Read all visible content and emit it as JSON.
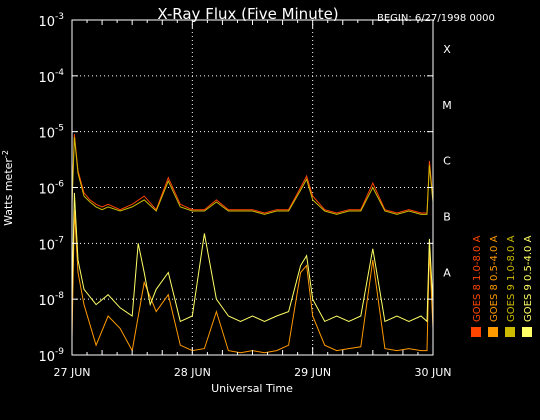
{
  "chart_data": {
    "type": "line",
    "title": "X-Ray Flux (Five Minute)",
    "begin_label": "BEGIN: 6/27/1998 0000",
    "xlabel": "Universal Time",
    "ylabel": "Watts meter",
    "ylabel_exp": "-2",
    "yscale": "log",
    "ylim": [
      1e-09,
      0.001
    ],
    "xlim": [
      0,
      3
    ],
    "grid": true,
    "y_ticks": [
      {
        "value": 1e-09,
        "base": "10",
        "exp": "-9"
      },
      {
        "value": 1e-08,
        "base": "10",
        "exp": "-8"
      },
      {
        "value": 1e-07,
        "base": "10",
        "exp": "-7"
      },
      {
        "value": 1e-06,
        "base": "10",
        "exp": "-6"
      },
      {
        "value": 1e-05,
        "base": "10",
        "exp": "-5"
      },
      {
        "value": 0.0001,
        "base": "10",
        "exp": "-4"
      },
      {
        "value": 0.001,
        "base": "10",
        "exp": "-3"
      }
    ],
    "x_ticks": [
      {
        "value": 0,
        "label": "27 JUN"
      },
      {
        "value": 1,
        "label": "28 JUN"
      },
      {
        "value": 2,
        "label": "29 JUN"
      },
      {
        "value": 3,
        "label": "30 JUN"
      }
    ],
    "flare_classes": [
      {
        "label": "A",
        "value": 1e-08
      },
      {
        "label": "B",
        "value": 1e-07
      },
      {
        "label": "C",
        "value": 1e-06
      },
      {
        "label": "M",
        "value": 1e-05
      },
      {
        "label": "X",
        "value": 0.0001
      }
    ],
    "series": [
      {
        "name": "GOES 8 1.0-8.0 A",
        "color": "#ff4400",
        "x": [
          0.0,
          0.02,
          0.05,
          0.1,
          0.15,
          0.2,
          0.25,
          0.3,
          0.4,
          0.5,
          0.6,
          0.7,
          0.8,
          0.9,
          1.0,
          1.1,
          1.2,
          1.3,
          1.4,
          1.5,
          1.6,
          1.7,
          1.8,
          1.9,
          1.95,
          2.0,
          2.1,
          2.2,
          2.3,
          2.4,
          2.5,
          2.6,
          2.7,
          2.8,
          2.9,
          2.95,
          2.97,
          3.0
        ],
        "values": [
          6e-07,
          9e-06,
          2e-06,
          8e-07,
          6e-07,
          5e-07,
          4.5e-07,
          5e-07,
          4e-07,
          5e-07,
          7e-07,
          4e-07,
          1.5e-06,
          5e-07,
          4e-07,
          4e-07,
          6e-07,
          4e-07,
          4e-07,
          4e-07,
          3.5e-07,
          4e-07,
          4e-07,
          1e-06,
          1.6e-06,
          7e-07,
          4e-07,
          3.5e-07,
          4e-07,
          4e-07,
          1.2e-06,
          4e-07,
          3.5e-07,
          4e-07,
          3.5e-07,
          3.5e-07,
          3e-06,
          6e-07
        ]
      },
      {
        "name": "GOES 8 0.5-4.0 A",
        "color": "#ff9900",
        "x": [
          0.0,
          0.02,
          0.05,
          0.1,
          0.2,
          0.3,
          0.4,
          0.5,
          0.6,
          0.7,
          0.8,
          0.9,
          1.0,
          1.1,
          1.2,
          1.3,
          1.4,
          1.5,
          1.6,
          1.7,
          1.8,
          1.9,
          1.95,
          2.0,
          2.1,
          2.2,
          2.3,
          2.4,
          2.5,
          2.6,
          2.7,
          2.8,
          2.9,
          2.95,
          2.97,
          3.0
        ],
        "values": [
          2e-09,
          4e-07,
          3e-08,
          8e-09,
          1.5e-09,
          5e-09,
          3e-09,
          1.2e-09,
          2e-08,
          6e-09,
          1.2e-08,
          1.5e-09,
          1.2e-09,
          1.3e-09,
          6e-09,
          1.2e-09,
          1.1e-09,
          1.2e-09,
          1.1e-09,
          1.2e-09,
          1.5e-09,
          3e-08,
          4e-08,
          5e-09,
          1.5e-09,
          1.2e-09,
          1.3e-09,
          1.4e-09,
          5e-08,
          1.3e-09,
          1.2e-09,
          1.3e-09,
          1.2e-09,
          1.2e-09,
          8e-08,
          3e-09
        ]
      },
      {
        "name": "GOES 9 1.0-8.0 A",
        "color": "#ccbb00",
        "x": [
          0.0,
          0.02,
          0.05,
          0.1,
          0.15,
          0.2,
          0.25,
          0.3,
          0.4,
          0.5,
          0.6,
          0.7,
          0.8,
          0.9,
          1.0,
          1.1,
          1.2,
          1.3,
          1.4,
          1.5,
          1.6,
          1.7,
          1.8,
          1.9,
          1.95,
          2.0,
          2.1,
          2.2,
          2.3,
          2.4,
          2.5,
          2.6,
          2.7,
          2.8,
          2.9,
          2.95,
          2.97,
          3.0
        ],
        "values": [
          5e-07,
          8e-06,
          1.8e-06,
          7e-07,
          5.5e-07,
          4.5e-07,
          4e-07,
          4.5e-07,
          3.8e-07,
          4.5e-07,
          6e-07,
          3.8e-07,
          1.3e-06,
          4.5e-07,
          3.8e-07,
          3.8e-07,
          5.5e-07,
          3.8e-07,
          3.8e-07,
          3.8e-07,
          3.3e-07,
          3.8e-07,
          3.8e-07,
          9e-07,
          1.4e-06,
          6e-07,
          3.8e-07,
          3.3e-07,
          3.8e-07,
          3.8e-07,
          1e-06,
          3.8e-07,
          3.3e-07,
          3.8e-07,
          3.3e-07,
          3.3e-07,
          2.5e-06,
          5.5e-07
        ]
      },
      {
        "name": "GOES 9 0.5-4.0 A",
        "color": "#ffff66",
        "x": [
          0.0,
          0.02,
          0.05,
          0.1,
          0.2,
          0.3,
          0.4,
          0.5,
          0.55,
          0.6,
          0.65,
          0.7,
          0.8,
          0.9,
          1.0,
          1.1,
          1.2,
          1.3,
          1.4,
          1.5,
          1.6,
          1.7,
          1.8,
          1.9,
          1.95,
          2.0,
          2.1,
          2.2,
          2.3,
          2.4,
          2.5,
          2.6,
          2.7,
          2.8,
          2.9,
          2.95,
          2.97,
          3.0
        ],
        "values": [
          1e-08,
          8e-07,
          5e-08,
          1.5e-08,
          8e-09,
          1.2e-08,
          7e-09,
          5e-09,
          1e-07,
          3e-08,
          8e-09,
          1.5e-08,
          3e-08,
          4e-09,
          5e-09,
          1.5e-07,
          1e-08,
          5e-09,
          4e-09,
          5e-09,
          4e-09,
          5e-09,
          6e-09,
          4e-08,
          6e-08,
          1e-08,
          4e-09,
          5e-09,
          4e-09,
          5e-09,
          8e-08,
          4e-09,
          5e-09,
          4e-09,
          5e-09,
          4e-09,
          1.2e-07,
          8e-09
        ]
      }
    ]
  }
}
